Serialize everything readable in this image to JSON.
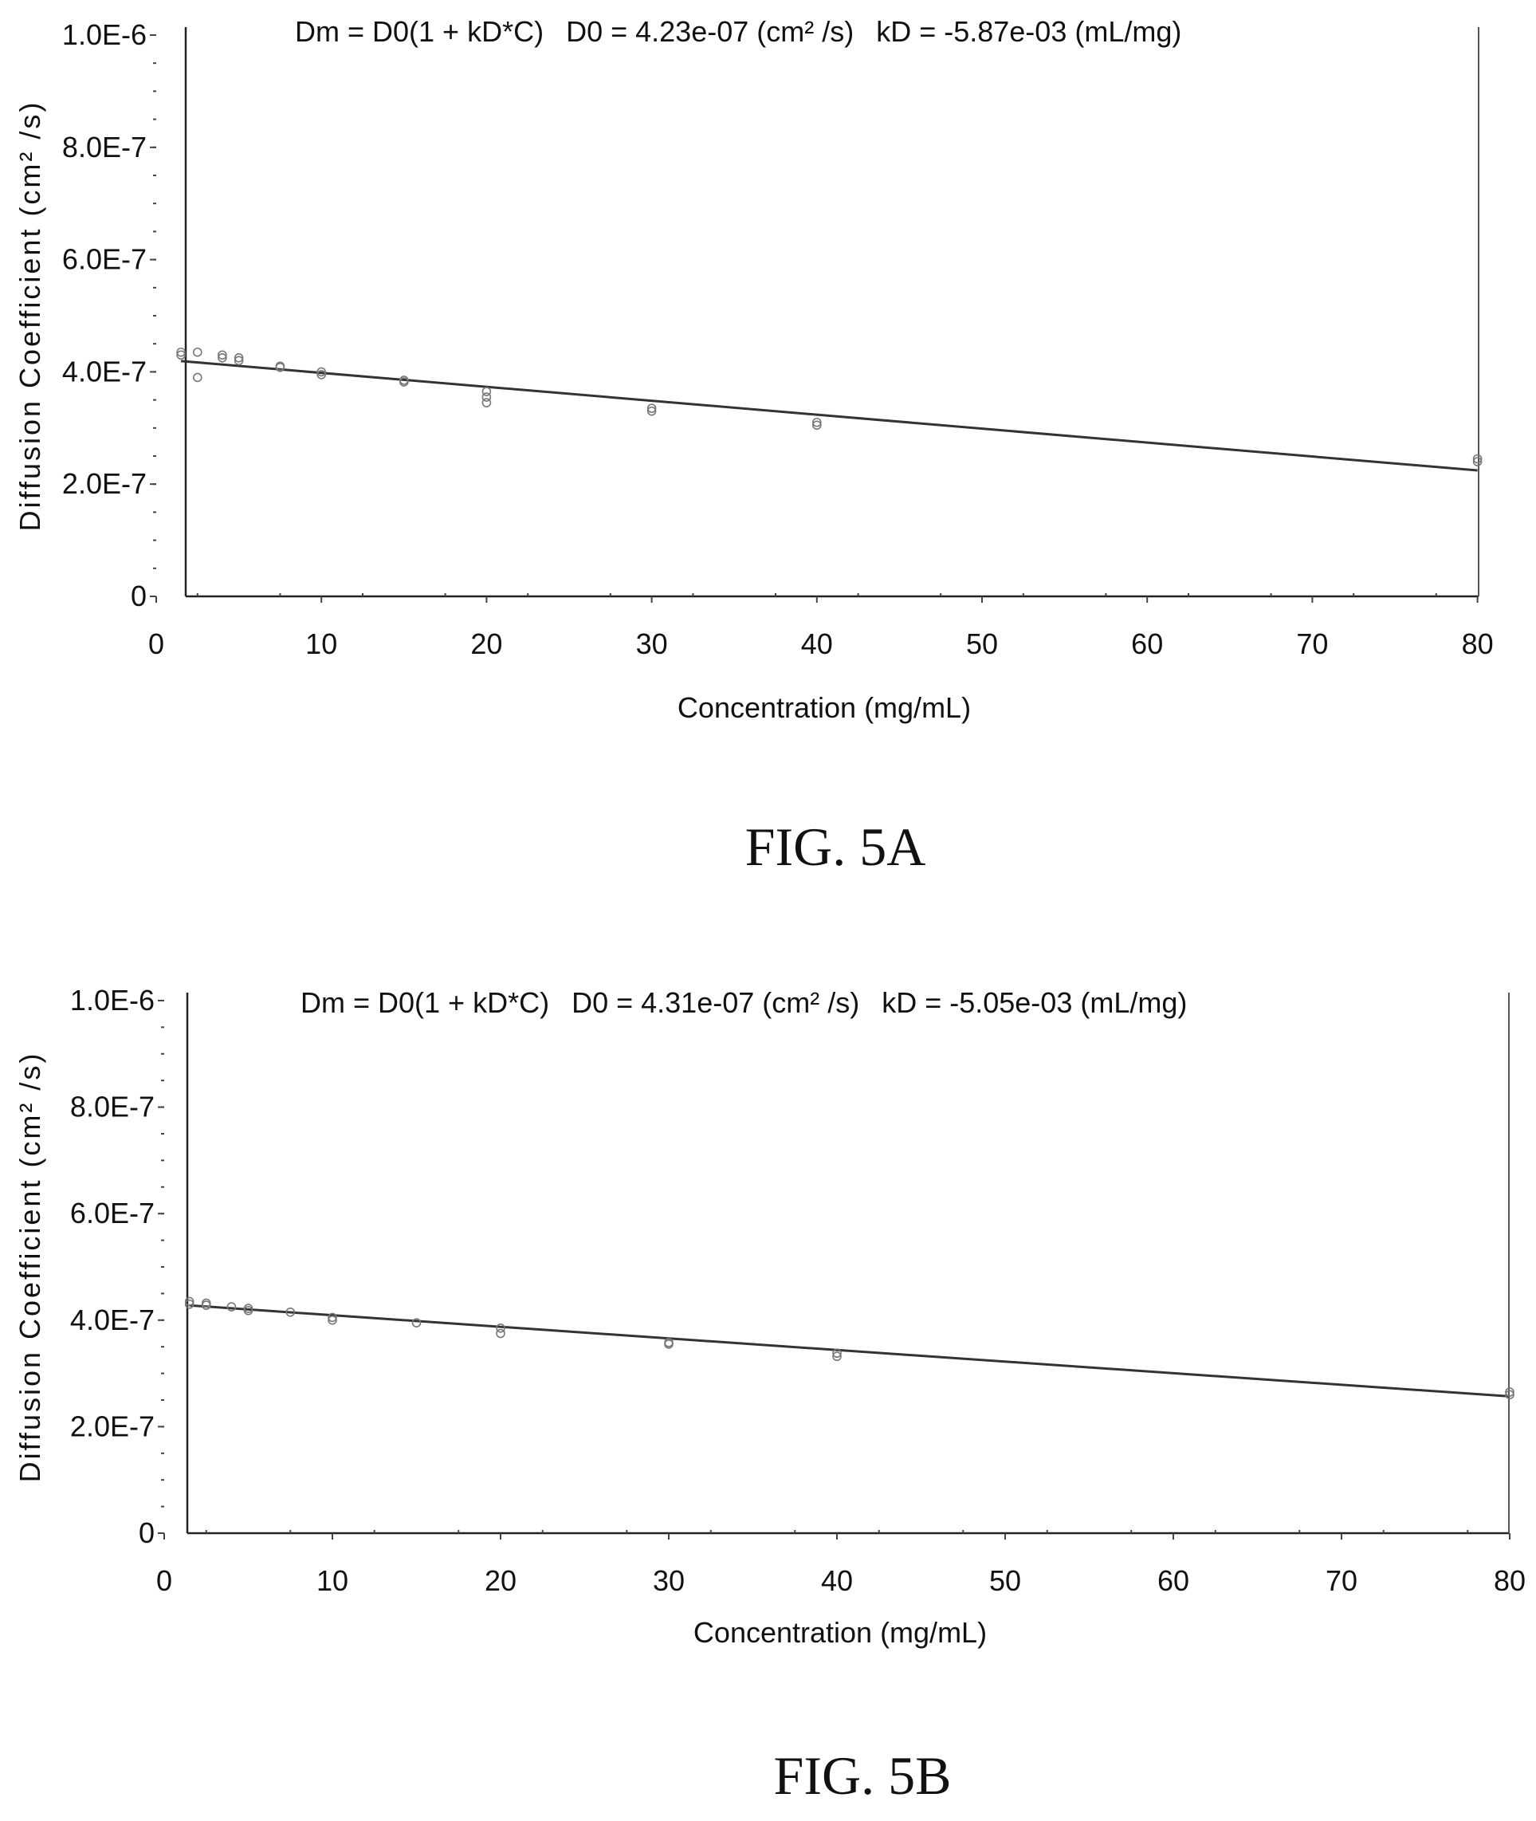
{
  "chart_data": [
    {
      "type": "scatter",
      "equation": "Dm = D0(1 + kD*C)",
      "d0_text": "D0 = 4.23e-07 (cm² /s)",
      "kd_text": "kD = -5.87e-03 (mL/mg)",
      "xlabel": "Concentration (mg/mL)",
      "ylabel": "Diffusion Coefficient (cm² /s)",
      "x_ticks": [
        "0",
        "10",
        "20",
        "30",
        "40",
        "50",
        "60",
        "70",
        "80"
      ],
      "y_ticks": [
        "0",
        "2.0E-7",
        "4.0E-7",
        "6.0E-7",
        "8.0E-7",
        "1.0E-6"
      ],
      "xlim": [
        0,
        80
      ],
      "ylim": [
        0,
        1e-06
      ],
      "fit": {
        "D0": 4.23e-07,
        "kD": -0.00587,
        "x_range": [
          1.5,
          80
        ]
      },
      "points": [
        {
          "x": 1.5,
          "y": 4.35e-07
        },
        {
          "x": 1.5,
          "y": 4.3e-07
        },
        {
          "x": 2.5,
          "y": 4.35e-07
        },
        {
          "x": 2.5,
          "y": 3.9e-07
        },
        {
          "x": 4,
          "y": 4.3e-07
        },
        {
          "x": 4,
          "y": 4.25e-07
        },
        {
          "x": 5,
          "y": 4.25e-07
        },
        {
          "x": 5,
          "y": 4.2e-07
        },
        {
          "x": 7.5,
          "y": 4.1e-07
        },
        {
          "x": 7.5,
          "y": 4.08e-07
        },
        {
          "x": 10,
          "y": 4e-07
        },
        {
          "x": 10,
          "y": 3.95e-07
        },
        {
          "x": 15,
          "y": 3.85e-07
        },
        {
          "x": 15,
          "y": 3.82e-07
        },
        {
          "x": 20,
          "y": 3.65e-07
        },
        {
          "x": 20,
          "y": 3.55e-07
        },
        {
          "x": 20,
          "y": 3.45e-07
        },
        {
          "x": 30,
          "y": 3.35e-07
        },
        {
          "x": 30,
          "y": 3.3e-07
        },
        {
          "x": 40,
          "y": 3.1e-07
        },
        {
          "x": 40,
          "y": 3.05e-07
        },
        {
          "x": 80,
          "y": 2.45e-07
        },
        {
          "x": 80,
          "y": 2.4e-07
        }
      ],
      "caption": "FIG. 5A"
    },
    {
      "type": "scatter",
      "equation": "Dm = D0(1 + kD*C)",
      "d0_text": "D0 = 4.31e-07 (cm² /s)",
      "kd_text": "kD = -5.05e-03 (mL/mg)",
      "xlabel": "Concentration (mg/mL)",
      "ylabel": "Diffusion Coefficient (cm² /s)",
      "x_ticks": [
        "0",
        "10",
        "20",
        "30",
        "40",
        "50",
        "60",
        "70",
        "80"
      ],
      "y_ticks": [
        "0",
        "2.0E-7",
        "4.0E-7",
        "6.0E-7",
        "8.0E-7",
        "1.0E-6"
      ],
      "xlim": [
        0,
        80
      ],
      "ylim": [
        0,
        1e-06
      ],
      "fit": {
        "D0": 4.31e-07,
        "kD": -0.00505,
        "x_range": [
          1.5,
          80
        ]
      },
      "points": [
        {
          "x": 1.5,
          "y": 4.35e-07
        },
        {
          "x": 1.5,
          "y": 4.3e-07
        },
        {
          "x": 2.5,
          "y": 4.32e-07
        },
        {
          "x": 2.5,
          "y": 4.28e-07
        },
        {
          "x": 4,
          "y": 4.25e-07
        },
        {
          "x": 5,
          "y": 4.22e-07
        },
        {
          "x": 5,
          "y": 4.18e-07
        },
        {
          "x": 7.5,
          "y": 4.15e-07
        },
        {
          "x": 10,
          "y": 4.05e-07
        },
        {
          "x": 10,
          "y": 4e-07
        },
        {
          "x": 15,
          "y": 3.95e-07
        },
        {
          "x": 20,
          "y": 3.85e-07
        },
        {
          "x": 20,
          "y": 3.75e-07
        },
        {
          "x": 30,
          "y": 3.58e-07
        },
        {
          "x": 30,
          "y": 3.55e-07
        },
        {
          "x": 40,
          "y": 3.38e-07
        },
        {
          "x": 40,
          "y": 3.32e-07
        },
        {
          "x": 80,
          "y": 2.65e-07
        },
        {
          "x": 80,
          "y": 2.6e-07
        }
      ],
      "caption": "FIG. 5B"
    }
  ]
}
